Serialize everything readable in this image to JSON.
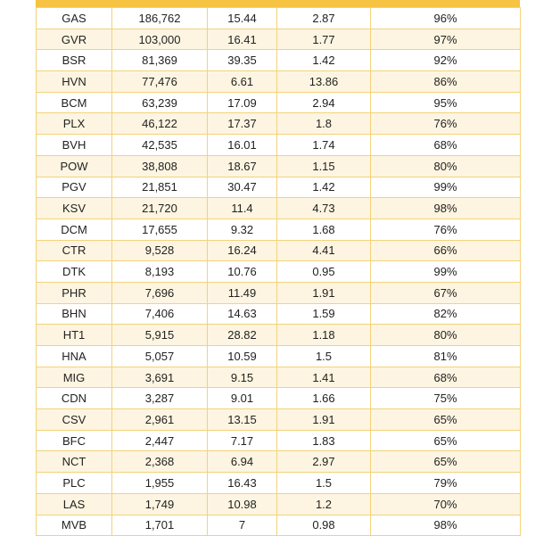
{
  "table": {
    "rows": [
      [
        "GAS",
        "186,762",
        "15.44",
        "2.87",
        "96%"
      ],
      [
        "GVR",
        "103,000",
        "16.41",
        "1.77",
        "97%"
      ],
      [
        "BSR",
        "81,369",
        "39.35",
        "1.42",
        "92%"
      ],
      [
        "HVN",
        "77,476",
        "6.61",
        "13.86",
        "86%"
      ],
      [
        "BCM",
        "63,239",
        "17.09",
        "2.94",
        "95%"
      ],
      [
        "PLX",
        "46,122",
        "17.37",
        "1.8",
        "76%"
      ],
      [
        "BVH",
        "42,535",
        "16.01",
        "1.74",
        "68%"
      ],
      [
        "POW",
        "38,808",
        "18.67",
        "1.15",
        "80%"
      ],
      [
        "PGV",
        "21,851",
        "30.47",
        "1.42",
        "99%"
      ],
      [
        "KSV",
        "21,720",
        "11.4",
        "4.73",
        "98%"
      ],
      [
        "DCM",
        "17,655",
        "9.32",
        "1.68",
        "76%"
      ],
      [
        "CTR",
        "9,528",
        "16.24",
        "4.41",
        "66%"
      ],
      [
        "DTK",
        "8,193",
        "10.76",
        "0.95",
        "99%"
      ],
      [
        "PHR",
        "7,696",
        "11.49",
        "1.91",
        "67%"
      ],
      [
        "BHN",
        "7,406",
        "14.63",
        "1.59",
        "82%"
      ],
      [
        "HT1",
        "5,915",
        "28.82",
        "1.18",
        "80%"
      ],
      [
        "HNA",
        "5,057",
        "10.59",
        "1.5",
        "81%"
      ],
      [
        "MIG",
        "3,691",
        "9.15",
        "1.41",
        "68%"
      ],
      [
        "CDN",
        "3,287",
        "9.01",
        "1.66",
        "75%"
      ],
      [
        "CSV",
        "2,961",
        "13.15",
        "1.91",
        "65%"
      ],
      [
        "BFC",
        "2,447",
        "7.17",
        "1.83",
        "65%"
      ],
      [
        "NCT",
        "2,368",
        "6.94",
        "2.97",
        "65%"
      ],
      [
        "PLC",
        "1,955",
        "16.43",
        "1.5",
        "79%"
      ],
      [
        "LAS",
        "1,749",
        "10.98",
        "1.2",
        "70%"
      ],
      [
        "MVB",
        "1,701",
        "7",
        "0.98",
        "98%"
      ]
    ]
  }
}
